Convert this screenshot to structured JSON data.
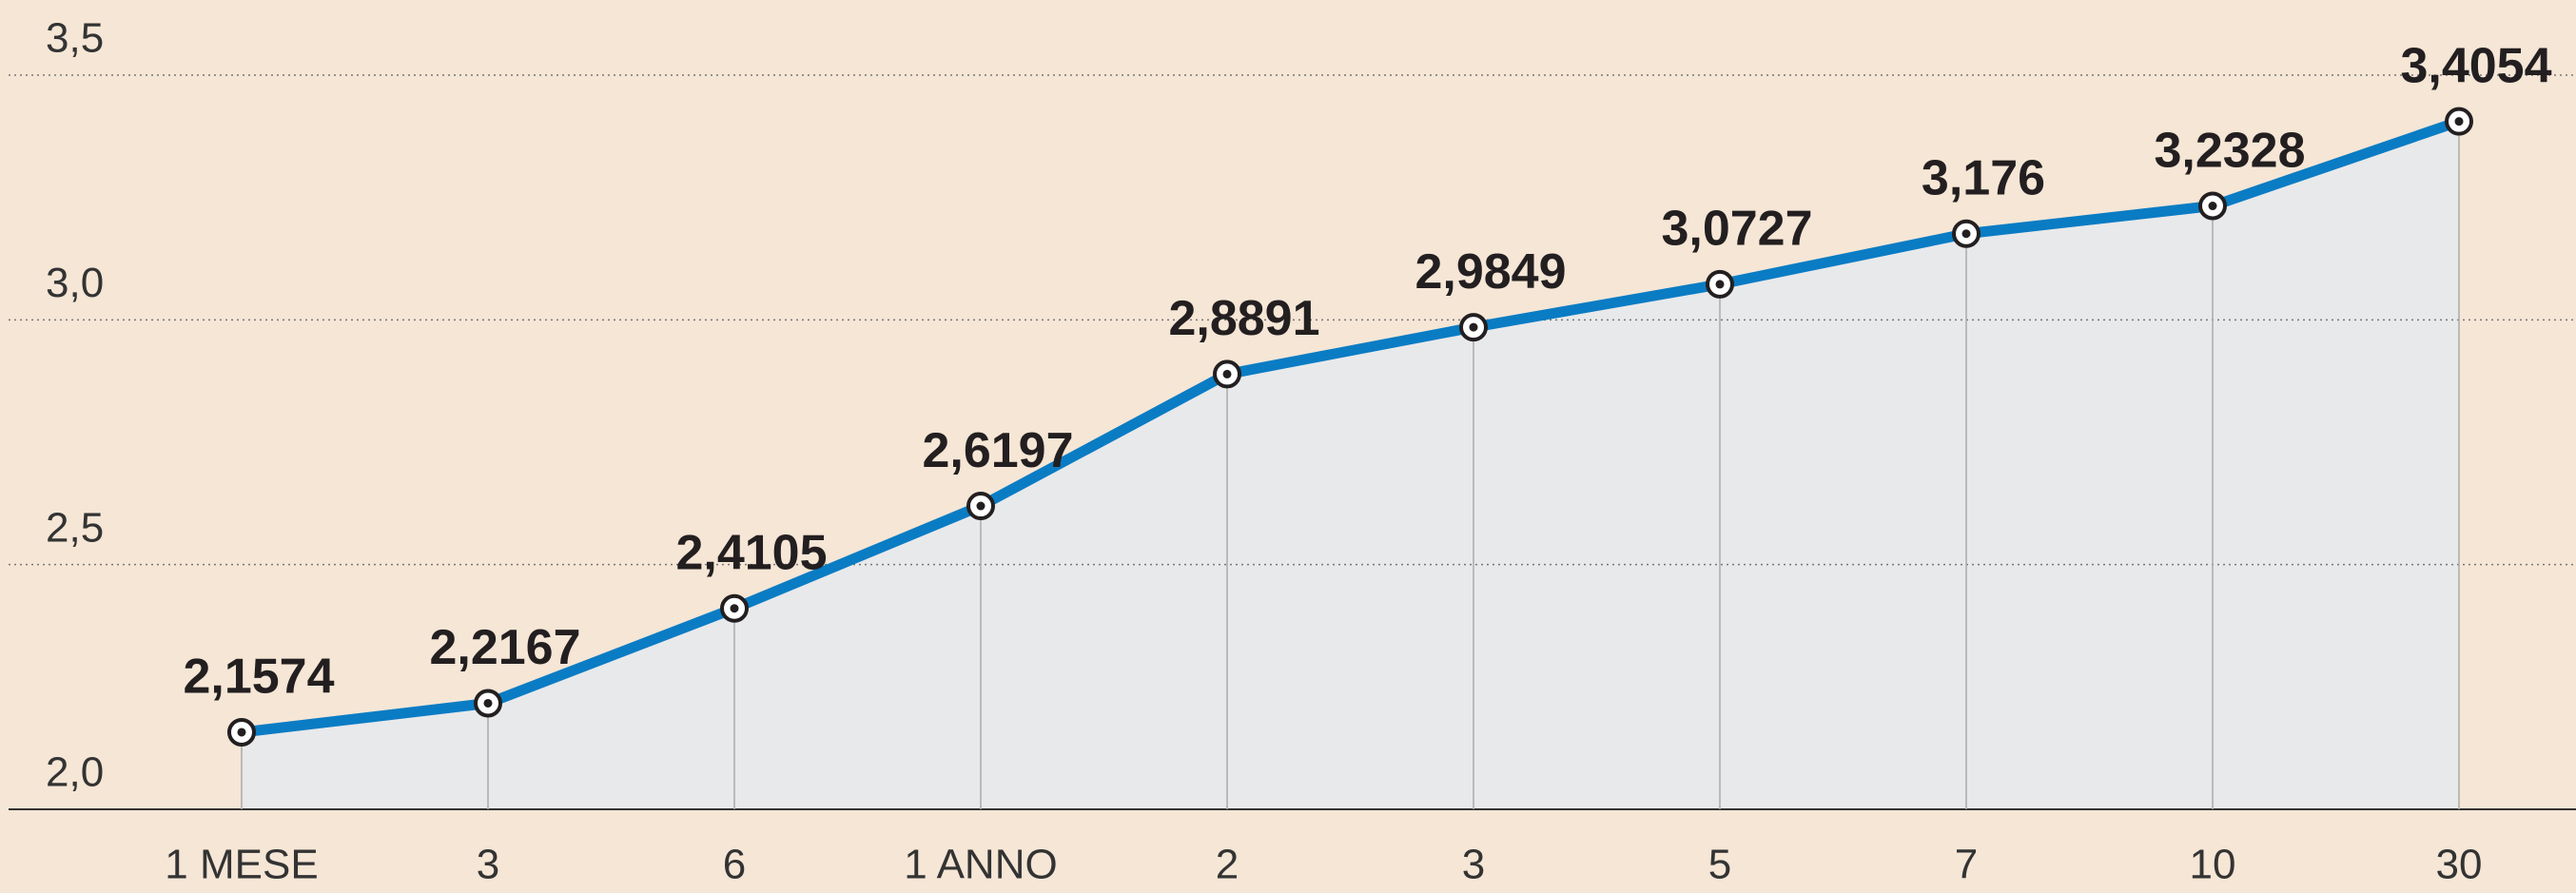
{
  "chart_data": {
    "type": "area",
    "categories": [
      "1 MESE",
      "3",
      "6",
      "1 ANNO",
      "2",
      "3",
      "5",
      "7",
      "10",
      "30"
    ],
    "values": [
      2.1574,
      2.2167,
      2.4105,
      2.6197,
      2.8891,
      2.9849,
      3.0727,
      3.176,
      3.2328,
      3.4054
    ],
    "value_labels": [
      "2,1574",
      "2,2167",
      "2,4105",
      "2,6197",
      "2,8891",
      "2,9849",
      "3,0727",
      "3,176",
      "3,2328",
      "3,4054"
    ],
    "color": "#0a7cc4",
    "ylim": [
      2.0,
      3.5
    ],
    "yticks": [
      {
        "value": 2.0,
        "label": "2,0"
      },
      {
        "value": 2.5,
        "label": "2,5"
      },
      {
        "value": 3.0,
        "label": "3,0"
      },
      {
        "value": 3.5,
        "label": "3,5"
      }
    ],
    "grid": true
  }
}
